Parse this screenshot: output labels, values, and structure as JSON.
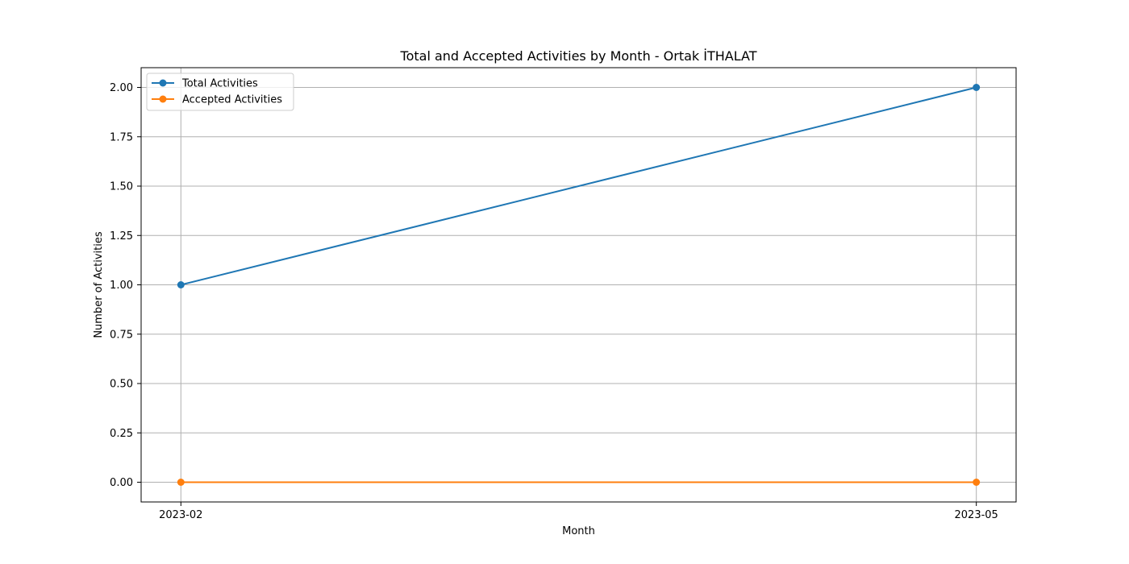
{
  "chart_data": {
    "type": "line",
    "title": "Total and Accepted Activities by Month - Ortak İTHALAT",
    "xlabel": "Month",
    "ylabel": "Number of Activities",
    "categories": [
      "2023-02",
      "2023-05"
    ],
    "series": [
      {
        "name": "Total Activities",
        "values": [
          1,
          2
        ],
        "color": "#1f77b4"
      },
      {
        "name": "Accepted Activities",
        "values": [
          0,
          0
        ],
        "color": "#ff7f0e"
      }
    ],
    "ylim": [
      -0.1,
      2.1
    ],
    "yticks": [
      "0.00",
      "0.25",
      "0.50",
      "0.75",
      "1.00",
      "1.25",
      "1.50",
      "1.75",
      "2.00"
    ],
    "grid": true,
    "legend": "top-left"
  }
}
